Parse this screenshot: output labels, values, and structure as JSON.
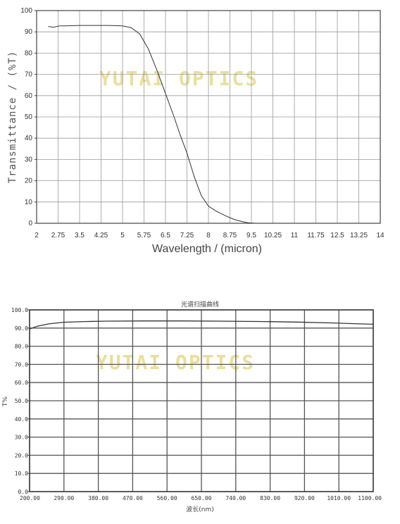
{
  "chart_data": [
    {
      "type": "line",
      "title": "",
      "xlabel": "Wavelength / (micron)",
      "ylabel": "Transmittance / (%T)",
      "watermark": "YUTAI OPTICS",
      "xlim": [
        2,
        14
      ],
      "ylim": [
        0,
        100
      ],
      "x_tick_labels": [
        "2",
        "2.75",
        "3.5",
        "4.25",
        "5",
        "5.75",
        "6.5",
        "7.25",
        "8",
        "8.75",
        "9.5",
        "10.25",
        "11",
        "11.75",
        "12.5",
        "13.25",
        "14"
      ],
      "y_tick_labels": [
        "0",
        "10",
        "20",
        "30",
        "40",
        "50",
        "60",
        "70",
        "80",
        "90",
        "100"
      ],
      "grid": true,
      "line_color": "#333333",
      "series": [
        {
          "x": [
            2.4,
            2.6,
            2.8,
            3.0,
            3.5,
            4.0,
            4.5,
            5.0,
            5.3,
            5.6,
            5.9,
            6.2,
            6.5,
            6.8,
            7.0,
            7.25,
            7.5,
            7.75,
            8.0,
            8.3,
            8.6,
            8.9,
            9.2,
            9.4,
            9.6
          ],
          "y": [
            92.5,
            92.2,
            92.8,
            92.8,
            93.0,
            93.0,
            93.0,
            92.8,
            92.0,
            89.0,
            82.0,
            72.0,
            61.0,
            50.0,
            42.0,
            33.0,
            22.0,
            13.0,
            8.0,
            5.5,
            3.5,
            1.8,
            0.7,
            0.2,
            0.0
          ]
        }
      ]
    },
    {
      "type": "line",
      "title": "光谱扫描曲线",
      "xlabel": "波长(nm)",
      "ylabel": "T%",
      "watermark": "YUTAI OPTICS",
      "xlim": [
        200,
        1100
      ],
      "ylim": [
        0,
        100
      ],
      "x_tick_labels": [
        "200.00",
        "290.00",
        "380.00",
        "470.00",
        "560.00",
        "650.00",
        "740.00",
        "830.00",
        "920.00",
        "1010.00",
        "1100.00"
      ],
      "y_tick_labels": [
        "0.0",
        "10.0",
        "20.0",
        "30.0",
        "40.0",
        "50.0",
        "60.0",
        "70.0",
        "80.0",
        "90.0",
        "100.0"
      ],
      "grid": true,
      "line_color": "#333333",
      "series": [
        {
          "x": [
            200,
            220,
            250,
            290,
            350,
            400,
            500,
            600,
            700,
            800,
            900,
            1000,
            1050,
            1100
          ],
          "y": [
            89.5,
            91.0,
            92.3,
            93.2,
            93.6,
            93.8,
            93.9,
            93.9,
            93.8,
            93.6,
            93.3,
            92.8,
            92.4,
            92.1
          ]
        }
      ]
    }
  ]
}
